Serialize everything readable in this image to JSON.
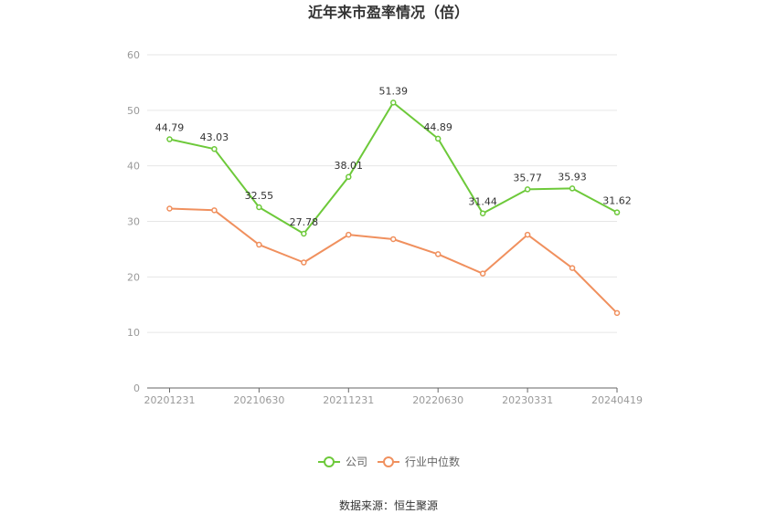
{
  "chart_data": {
    "type": "line",
    "title": "近年来市盈率情况（倍）",
    "source": "数据来源：恒生聚源",
    "xlabel": "",
    "ylabel": "",
    "ylim": [
      0,
      60
    ],
    "yticks": [
      0,
      10,
      20,
      30,
      40,
      50,
      60
    ],
    "x_tick_labels": [
      "20201231",
      "20210630",
      "20211231",
      "20220630",
      "20230331",
      "20240419"
    ],
    "point_count": 11,
    "grid": true,
    "legend_position": "bottom-center",
    "series": [
      {
        "name": "公司",
        "color": "#6dc93a",
        "values": [
          44.79,
          43.03,
          32.55,
          27.78,
          38.01,
          51.39,
          44.89,
          31.44,
          35.77,
          35.93,
          31.62
        ],
        "labels": [
          "44.79",
          "43.03",
          "32.55",
          "27.78",
          "38.01",
          "51.39",
          "44.89",
          "31.44",
          "35.77",
          "35.93",
          "31.62"
        ]
      },
      {
        "name": "行业中位数",
        "color": "#f0905e",
        "values": [
          32.3,
          32.0,
          25.8,
          22.6,
          27.6,
          26.8,
          24.1,
          20.6,
          27.6,
          21.6,
          13.5
        ]
      }
    ]
  }
}
